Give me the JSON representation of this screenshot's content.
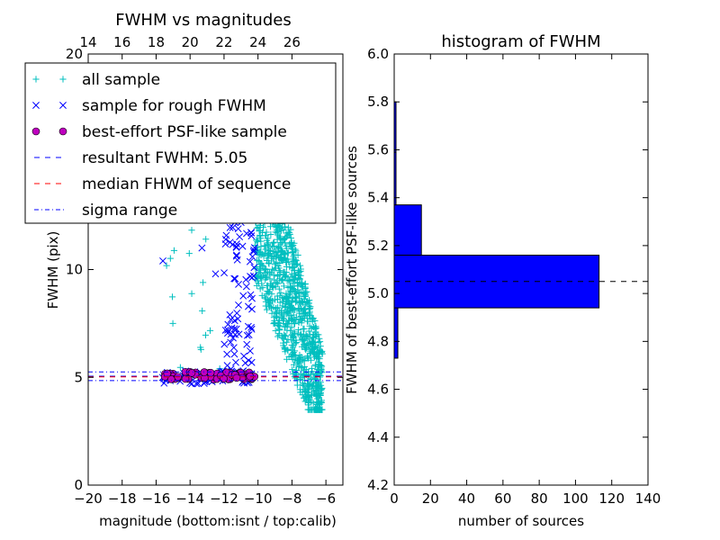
{
  "chart_data": [
    {
      "type": "scatter",
      "title": "FWHM vs magnitudes",
      "xlabel": "magnitude (bottom:isnt / top:calib)",
      "ylabel": "FWHM (pix)",
      "xlim": [
        -20,
        -5
      ],
      "ylim": [
        0,
        20
      ],
      "x_ticks": [
        -20,
        -18,
        -16,
        -14,
        -12,
        -10,
        -8,
        -6
      ],
      "x_tick_labels": [
        "−20",
        "−18",
        "−16",
        "−14",
        "−12",
        "−10",
        "−8",
        "−6"
      ],
      "y_ticks": [
        0,
        5,
        10,
        20
      ],
      "y_tick_labels": [
        "0",
        "5",
        "10",
        "20"
      ],
      "top_axis": {
        "ticks": [
          14,
          16,
          18,
          20,
          22,
          24,
          26
        ],
        "tick_labels": [
          "14",
          "16",
          "18",
          "20",
          "22",
          "24",
          "26"
        ],
        "offset": 34
      },
      "legend_position": "upper-left",
      "series": [
        {
          "name": "all sample",
          "marker": "+",
          "color": "#00bfbf",
          "clusters": [
            {
              "x": [
                -10.2,
                -6.2
              ],
              "y": [
                3.5,
                19.5
              ],
              "n": 1100,
              "trend": "steep"
            },
            {
              "x": [
                -15.6,
                -12.0
              ],
              "y": [
                5.0,
                12.5
              ],
              "n": 18,
              "trend": "flat"
            }
          ]
        },
        {
          "name": "sample for rough FWHM",
          "marker": "x",
          "color": "#0000ff",
          "clusters": [
            {
              "x": [
                -12.0,
                -10.2
              ],
              "y": [
                5.0,
                12.2
              ],
              "n": 80,
              "trend": "flat"
            },
            {
              "x": [
                -15.7,
                -10.5
              ],
              "y": [
                4.7,
                5.3
              ],
              "n": 60,
              "trend": "flat"
            }
          ],
          "extra_points": [
            [
              -15.6,
              10.4
            ],
            [
              -13.3,
              11.0
            ],
            [
              -12.5,
              9.8
            ],
            [
              -13.9,
              4.7
            ]
          ]
        },
        {
          "name": "best-effort PSF-like sample",
          "marker": "o",
          "color": "#bf00bf",
          "clusters": [
            {
              "x": [
                -15.5,
                -10.2
              ],
              "y": [
                4.9,
                5.25
              ],
              "n": 70,
              "trend": "flat"
            }
          ]
        }
      ],
      "lines": [
        {
          "name": "resultant FWHM: 5.05",
          "style": "dashed",
          "color": "#0000ff",
          "y": 5.05
        },
        {
          "name": "median FHWM of sequence",
          "style": "dashed",
          "color": "#ff0000",
          "y": 5.02
        },
        {
          "name": "sigma range",
          "style": "dashdot",
          "color": "#0000ff",
          "y": [
            4.85,
            5.25
          ]
        }
      ]
    },
    {
      "type": "bar",
      "orientation": "horizontal",
      "title": "histogram of FWHM",
      "xlabel": "number of sources",
      "ylabel": "FWHM of best-effort PSF-like sources",
      "xlim": [
        0,
        140
      ],
      "ylim": [
        4.2,
        6.0
      ],
      "x_ticks": [
        0,
        20,
        40,
        60,
        80,
        100,
        120,
        140
      ],
      "y_ticks": [
        4.2,
        4.4,
        4.6,
        4.8,
        5.0,
        5.2,
        5.4,
        5.6,
        5.8,
        6.0
      ],
      "y_tick_labels": [
        "4.2",
        "4.4",
        "4.6",
        "4.8",
        "5.0",
        "5.2",
        "5.4",
        "5.6",
        "5.8",
        "6.0"
      ],
      "bar_color": "#0000ff",
      "bins": [
        {
          "y0": 4.73,
          "y1": 4.94,
          "count": 2
        },
        {
          "y0": 4.94,
          "y1": 5.16,
          "count": 113
        },
        {
          "y0": 5.16,
          "y1": 5.37,
          "count": 15
        },
        {
          "y0": 5.37,
          "y1": 5.59,
          "count": 1
        },
        {
          "y0": 5.59,
          "y1": 5.8,
          "count": 1
        }
      ],
      "reference_line": {
        "y": 5.05,
        "style": "dashed",
        "color": "#000000"
      }
    }
  ]
}
